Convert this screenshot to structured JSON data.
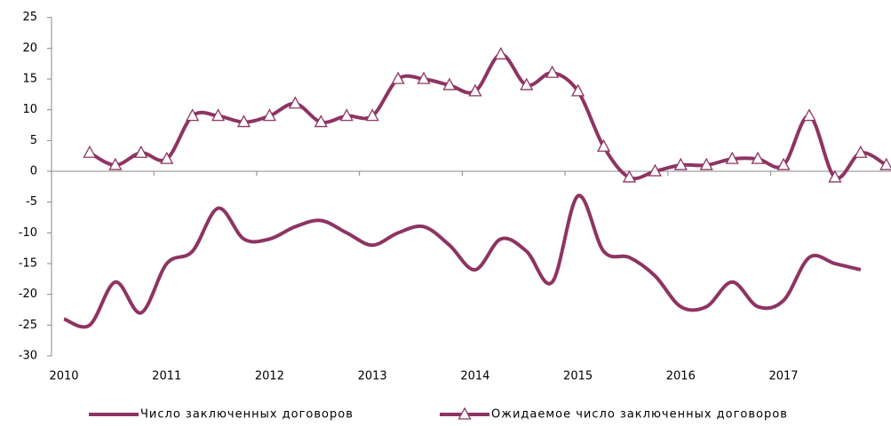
{
  "chart_data": {
    "type": "line",
    "categories": [
      "2010",
      null,
      null,
      null,
      "2011",
      null,
      null,
      null,
      "2012",
      null,
      null,
      null,
      "2013",
      null,
      null,
      null,
      "2014",
      null,
      null,
      null,
      "2015",
      null,
      null,
      null,
      "2016",
      null,
      null,
      null,
      "2017",
      null,
      null,
      null,
      null
    ],
    "series": [
      {
        "name": "Число заключенных договоров",
        "color": "#8e3462",
        "marker": "none",
        "values": [
          -24,
          -25,
          -18,
          -23,
          -15,
          -13,
          -6,
          -11,
          -11,
          -9,
          -8,
          -10,
          -12,
          -10,
          -9,
          -12,
          -16,
          -11,
          -13,
          -18,
          -4,
          -13,
          -14,
          -17,
          -22,
          -22,
          -18,
          -22,
          -21,
          -14,
          -15,
          -16,
          null
        ]
      },
      {
        "name": "Ожидаемое число заключенных договоров",
        "color": "#8e3462",
        "marker": "triangle",
        "values": [
          null,
          3,
          1,
          3,
          2,
          9,
          9,
          8,
          9,
          11,
          8,
          9,
          9,
          15,
          15,
          14,
          13,
          19,
          14,
          16,
          13,
          4,
          -1,
          0,
          1,
          1,
          2,
          2,
          1,
          9,
          -1,
          3,
          1
        ]
      }
    ],
    "ylim": [
      -30,
      25
    ],
    "yticks": [
      -30,
      -25,
      -20,
      -15,
      -10,
      -5,
      0,
      5,
      10,
      15,
      20,
      25
    ],
    "legend": "bottom"
  }
}
